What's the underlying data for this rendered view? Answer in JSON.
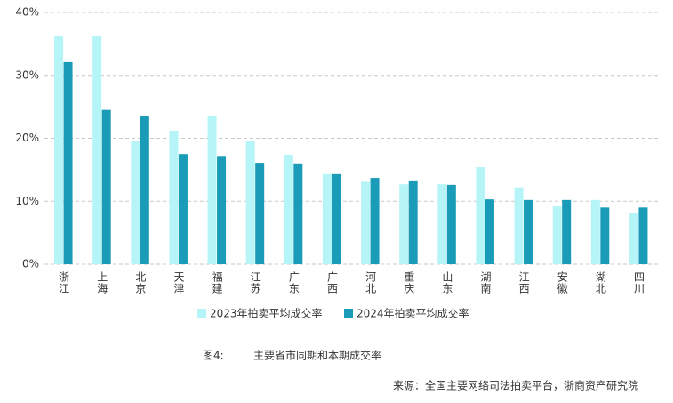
{
  "chart_data": {
    "type": "bar",
    "title": "主要省市同期和本期成交率",
    "figure_label": "图4:",
    "source": "来源：全国主要网络司法拍卖平台，浙商资产研究院",
    "categories": [
      "浙江",
      "上海",
      "北京",
      "天津",
      "福建",
      "江苏",
      "广东",
      "广西",
      "河北",
      "重庆",
      "山东",
      "湖南",
      "江西",
      "安徽",
      "湖北",
      "四川"
    ],
    "series": [
      {
        "name": "2023年拍卖平均成交率",
        "color": "#b5f4f7",
        "values": [
          36.2,
          36.2,
          19.6,
          21.2,
          23.6,
          19.6,
          17.4,
          14.3,
          13.1,
          12.7,
          12.7,
          15.4,
          12.2,
          9.2,
          10.2,
          8.2
        ]
      },
      {
        "name": "2024年拍卖平均成交率",
        "color": "#1a9bb8",
        "values": [
          32.1,
          24.5,
          23.6,
          17.5,
          17.2,
          16.1,
          16.0,
          14.3,
          13.7,
          13.3,
          12.6,
          10.3,
          10.2,
          10.2,
          9.0,
          9.0
        ]
      }
    ],
    "ylim": [
      0,
      40
    ],
    "yticks": [
      {
        "value": 0,
        "label": "0%"
      },
      {
        "value": 10,
        "label": "10%"
      },
      {
        "value": 20,
        "label": "20%"
      },
      {
        "value": 30,
        "label": "30%"
      },
      {
        "value": 40,
        "label": "40%"
      }
    ],
    "grid": true
  }
}
